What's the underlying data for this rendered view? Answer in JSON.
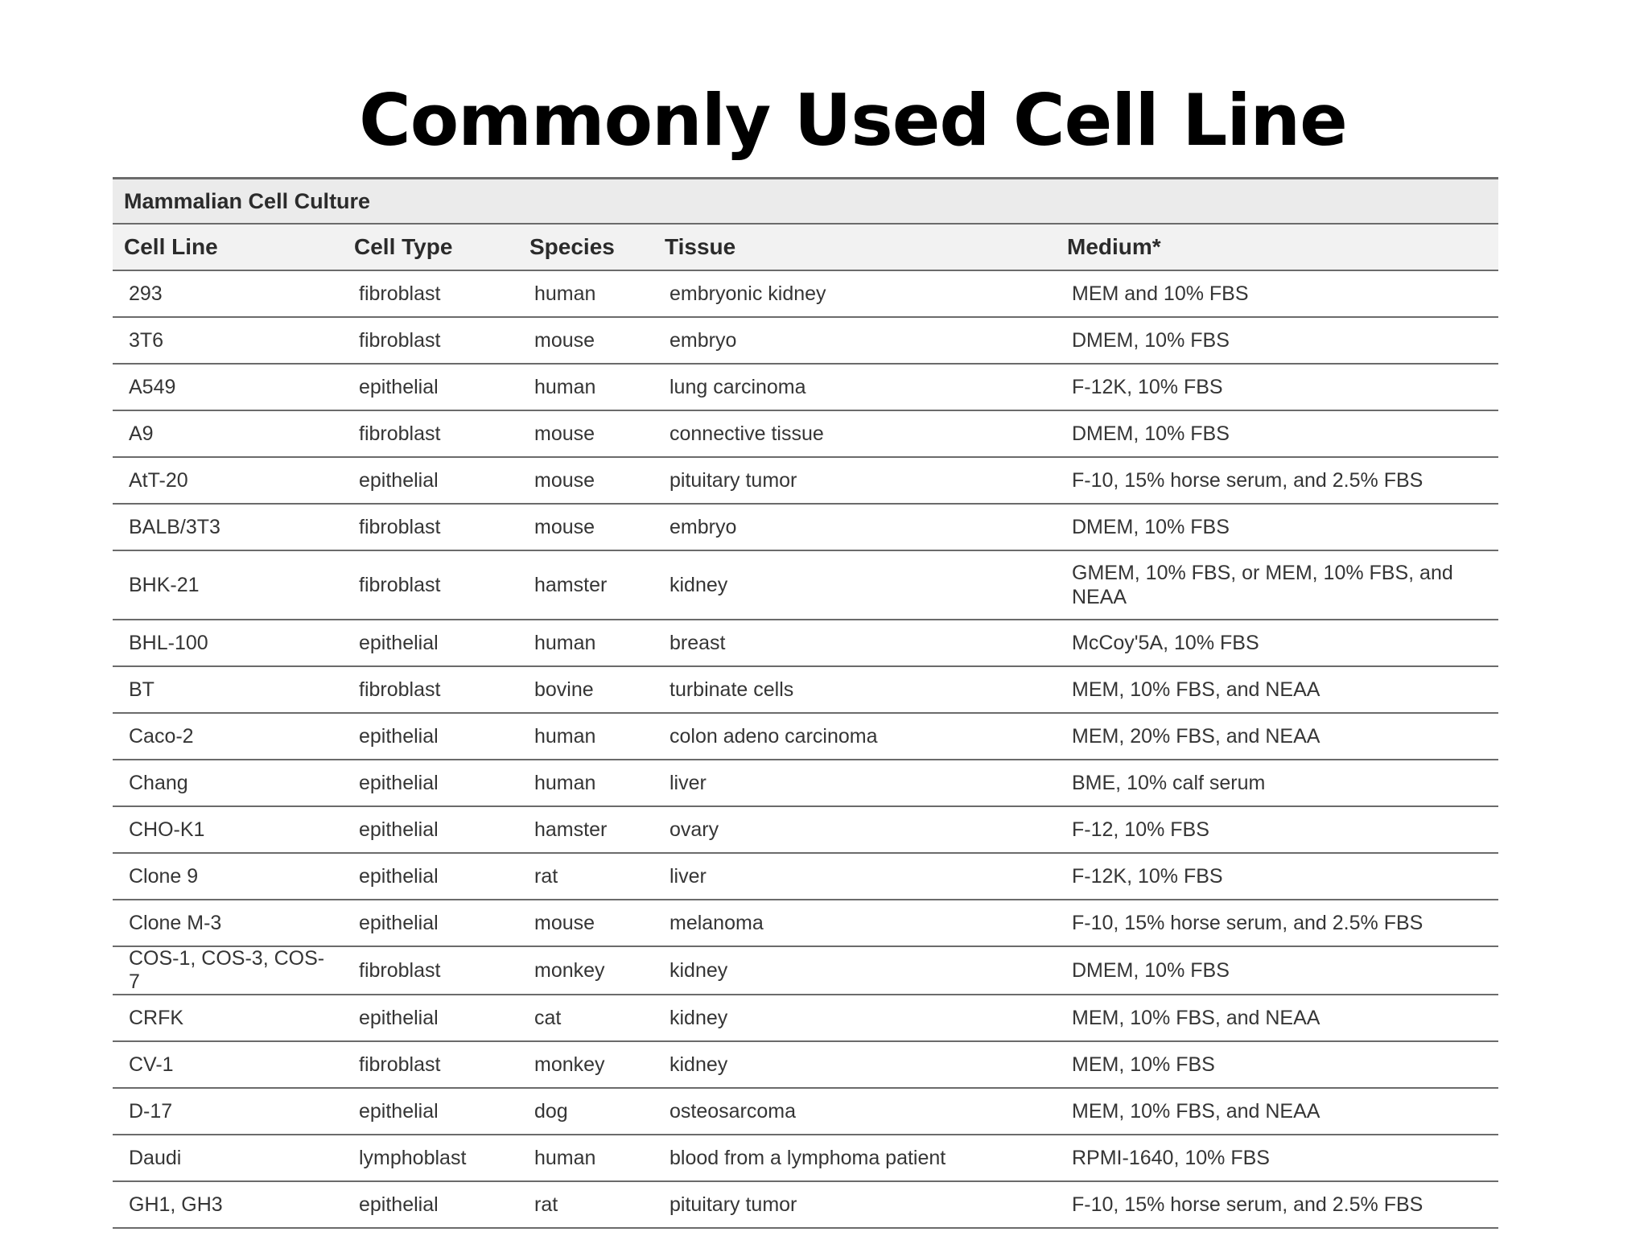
{
  "title": "Commonly Used Cell Line",
  "table": {
    "caption": "Mammalian Cell Culture",
    "headers": [
      "Cell Line",
      "Cell Type",
      "Species",
      "Tissue",
      "Medium*"
    ],
    "rows": [
      [
        "293",
        "fibroblast",
        "human",
        "embryonic kidney",
        "MEM and 10% FBS"
      ],
      [
        "3T6",
        "fibroblast",
        "mouse",
        "embryo",
        "DMEM, 10% FBS"
      ],
      [
        "A549",
        "epithelial",
        "human",
        "lung carcinoma",
        "F-12K, 10% FBS"
      ],
      [
        "A9",
        "fibroblast",
        "mouse",
        "connective tissue",
        "DMEM, 10% FBS"
      ],
      [
        "AtT-20",
        "epithelial",
        "mouse",
        "pituitary tumor",
        "F-10, 15% horse serum, and 2.5% FBS"
      ],
      [
        "BALB/3T3",
        "fibroblast",
        "mouse",
        "embryo",
        "DMEM, 10% FBS"
      ],
      [
        "BHK-21",
        "fibroblast",
        "hamster",
        "kidney",
        "GMEM, 10% FBS, or MEM, 10% FBS, and NEAA"
      ],
      [
        "BHL-100",
        "epithelial",
        "human",
        "breast",
        "McCoy'5A, 10% FBS"
      ],
      [
        "BT",
        "fibroblast",
        "bovine",
        "turbinate cells",
        "MEM, 10% FBS, and NEAA"
      ],
      [
        "Caco-2",
        "epithelial",
        "human",
        "colon adeno carcinoma",
        "MEM, 20% FBS, and NEAA"
      ],
      [
        "Chang",
        "epithelial",
        "human",
        "liver",
        "BME, 10% calf serum"
      ],
      [
        "CHO-K1",
        "epithelial",
        "hamster",
        "ovary",
        "F-12, 10% FBS"
      ],
      [
        "Clone 9",
        "epithelial",
        "rat",
        "liver",
        "F-12K, 10% FBS"
      ],
      [
        "Clone M-3",
        "epithelial",
        "mouse",
        "melanoma",
        "F-10, 15% horse serum, and 2.5% FBS"
      ],
      [
        "COS-1, COS-3, COS-7",
        "fibroblast",
        "monkey",
        "kidney",
        "DMEM, 10% FBS"
      ],
      [
        "CRFK",
        "epithelial",
        "cat",
        "kidney",
        "MEM, 10% FBS, and NEAA"
      ],
      [
        "CV-1",
        "fibroblast",
        "monkey",
        "kidney",
        "MEM, 10% FBS"
      ],
      [
        "D-17",
        "epithelial",
        "dog",
        "osteosarcoma",
        "MEM, 10% FBS, and NEAA"
      ],
      [
        "Daudi",
        "lymphoblast",
        "human",
        "blood from a lymphoma patient",
        "RPMI-1640, 10% FBS"
      ],
      [
        "GH1, GH3",
        "epithelial",
        "rat",
        "pituitary tumor",
        "F-10, 15% horse serum, and 2.5% FBS"
      ]
    ]
  }
}
